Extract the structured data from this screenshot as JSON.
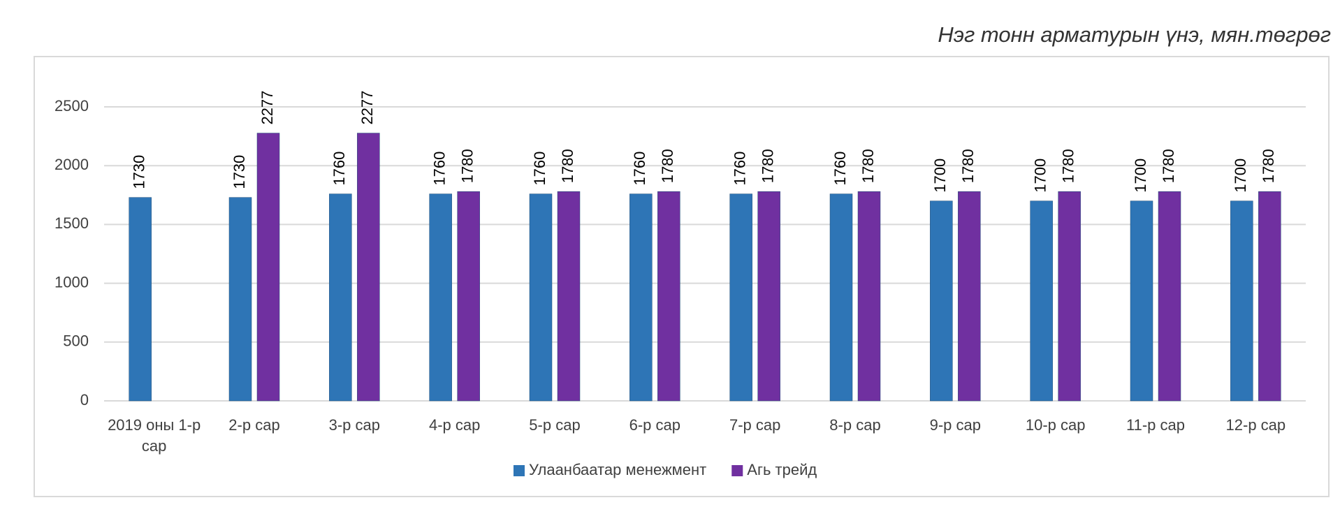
{
  "chart_data": {
    "type": "bar",
    "title": "Нэг тонн арматурын үнэ, мян.төгрөг",
    "categories": [
      "2019 оны 1-р сар",
      "2-р сар",
      "3-р сар",
      "4-р сар",
      "5-р сар",
      "6-р сар",
      "7-р сар",
      "8-р сар",
      "9-р сар",
      "10-р сар",
      "11-р сар",
      "12-р сар"
    ],
    "series": [
      {
        "name": "Улаанбаатар менежмент",
        "color": "#2e75b6",
        "values": [
          1730,
          1730,
          1760,
          1760,
          1760,
          1760,
          1760,
          1760,
          1700,
          1700,
          1700,
          1700
        ]
      },
      {
        "name": "Агь трейд",
        "color": "#7030a0",
        "values": [
          null,
          2277,
          2277,
          1780,
          1780,
          1780,
          1780,
          1780,
          1780,
          1780,
          1780,
          1780
        ]
      }
    ],
    "ylim": [
      0,
      2500
    ],
    "yticks": [
      0,
      500,
      1000,
      1500,
      2000,
      2500
    ],
    "grid": true,
    "legend": "bottom"
  }
}
